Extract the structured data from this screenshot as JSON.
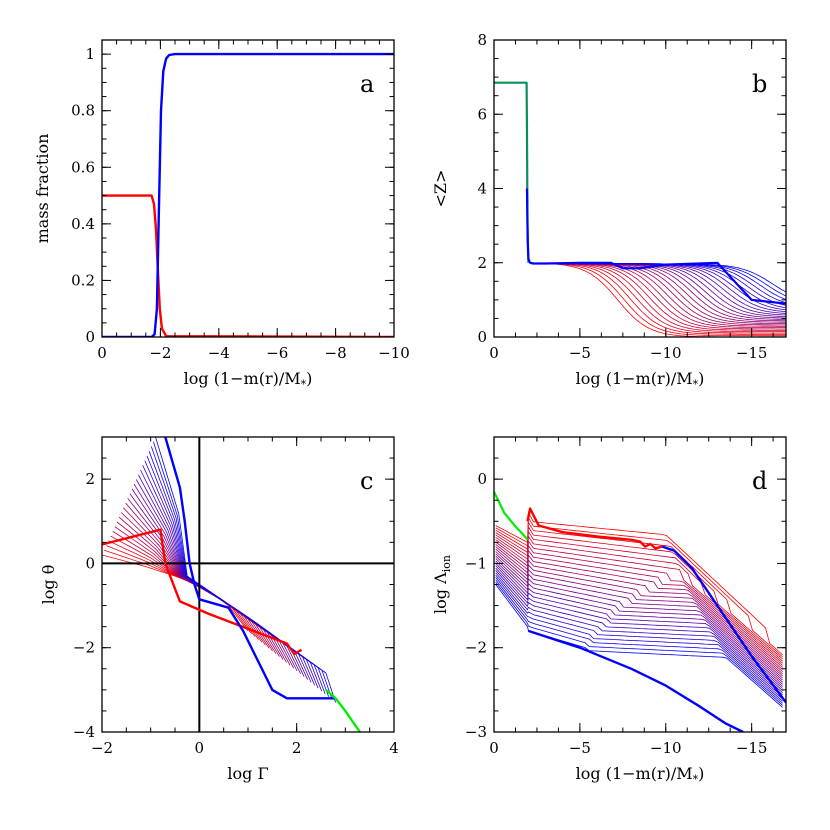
{
  "colors": {
    "red": "#ff0000",
    "blue": "#0000ff",
    "green": "#00ee00",
    "teal": "#0a8f5a",
    "black": "#000000"
  },
  "chart_data": [
    {
      "id": "a",
      "type": "line",
      "panel_label": "a",
      "xlabel": "log (1−m(r)/M",
      "xlabel_sub": "*",
      "xlabel_tail": ")",
      "ylabel": "mass fraction",
      "xlim": [
        0,
        -10
      ],
      "ylim": [
        0,
        1.05
      ],
      "xticks": [
        0,
        -2,
        -4,
        -6,
        -8,
        -10
      ],
      "xtick_labels": [
        "0",
        "−2",
        "−4",
        "−6",
        "−8",
        "−10"
      ],
      "yticks": [
        0,
        0.2,
        0.4,
        0.6,
        0.8,
        1
      ],
      "ytick_labels": [
        "0",
        "0.2",
        "0.4",
        "0.6",
        "0.8",
        "1"
      ],
      "series": [
        {
          "name": "red-dashed",
          "color": "red",
          "dash": true,
          "width": 1.6,
          "x": [
            0,
            -1.7,
            -1.78,
            -1.85,
            -1.92,
            -1.98,
            -2.05,
            -2.2,
            -10
          ],
          "y": [
            0.5,
            0.5,
            0.47,
            0.38,
            0.22,
            0.1,
            0.03,
            0.003,
            0.0
          ]
        },
        {
          "name": "black",
          "color": "black",
          "width": 1.6,
          "x": [
            0,
            -1.7,
            -1.78,
            -1.85,
            -1.92,
            -1.98,
            -2.05,
            -2.2,
            -10
          ],
          "y": [
            0.5,
            0.5,
            0.47,
            0.38,
            0.22,
            0.1,
            0.03,
            0.003,
            0.0
          ]
        },
        {
          "name": "red",
          "color": "red",
          "width": 2.4,
          "x": [
            0,
            -1.7,
            -1.78,
            -1.85,
            -1.92,
            -1.98,
            -2.05,
            -2.2,
            -10
          ],
          "y": [
            0.5,
            0.5,
            0.47,
            0.38,
            0.22,
            0.1,
            0.03,
            0.003,
            0.0
          ]
        },
        {
          "name": "blue",
          "color": "blue",
          "width": 2.4,
          "x": [
            0,
            -1.7,
            -1.8,
            -1.88,
            -1.95,
            -2.02,
            -2.1,
            -2.2,
            -2.3,
            -2.5,
            -10
          ],
          "y": [
            0.0,
            0.0,
            0.01,
            0.1,
            0.45,
            0.8,
            0.94,
            0.985,
            0.997,
            1.0,
            1.0
          ]
        }
      ]
    },
    {
      "id": "b",
      "type": "line",
      "panel_label": "b",
      "xlabel": "log (1−m(r)/M",
      "xlabel_sub": "*",
      "xlabel_tail": ")",
      "ylabel": "<Z>",
      "xlim": [
        0,
        -17
      ],
      "ylim": [
        0,
        8
      ],
      "xticks": [
        0,
        -5,
        -10,
        -15
      ],
      "xtick_labels": [
        "0",
        "−5",
        "−10",
        "−15"
      ],
      "yticks": [
        0,
        2,
        4,
        6,
        8
      ],
      "ytick_labels": [
        "0",
        "2",
        "4",
        "6",
        "8"
      ],
      "family": {
        "name": "ionization-profiles",
        "count": 26,
        "color_start": "red",
        "color_end": "blue",
        "drop_start": -7.2,
        "drop_end": -16.2,
        "floor_start": 0.0,
        "floor_end": 0.9
      },
      "series": [
        {
          "name": "teal",
          "color": "teal",
          "width": 2.2,
          "x": [
            0,
            -1.9,
            -1.92,
            -1.95,
            -2.0
          ],
          "y": [
            6.85,
            6.85,
            5.5,
            3.0,
            2.0
          ]
        },
        {
          "name": "blue-core",
          "color": "blue",
          "width": 2.2,
          "x": [
            -1.92,
            -1.96,
            -2.0,
            -2.1,
            -2.3,
            -3,
            -5,
            -6.8,
            -7.5,
            -8.5,
            -10,
            -13,
            -15,
            -17
          ],
          "y": [
            4.0,
            2.6,
            2.1,
            2.0,
            1.98,
            1.98,
            2.0,
            2.0,
            1.85,
            1.85,
            1.95,
            2.0,
            1.0,
            0.9
          ]
        }
      ]
    },
    {
      "id": "c",
      "type": "line",
      "panel_label": "c",
      "xlabel": "log Γ",
      "ylabel": "log θ",
      "xlim": [
        -2,
        4
      ],
      "ylim": [
        -4,
        3
      ],
      "xticks": [
        -2,
        0,
        2,
        4
      ],
      "xtick_labels": [
        "−2",
        "0",
        "2",
        "4"
      ],
      "yticks": [
        -4,
        -2,
        0,
        2
      ],
      "ytick_labels": [
        "−4",
        "−2",
        "0",
        "2"
      ],
      "family": {
        "name": "theta-gamma-tracks",
        "count": 26,
        "color_start": "red",
        "color_end": "blue"
      },
      "series": [
        {
          "name": "red-thick",
          "color": "red",
          "width": 2.4,
          "x": [
            -2,
            -0.8,
            -0.7,
            -0.4,
            0.2,
            1.0,
            1.8,
            1.95,
            2.1
          ],
          "y": [
            0.45,
            0.8,
            0.0,
            -0.9,
            -1.2,
            -1.55,
            -1.9,
            -2.15,
            -2.05
          ]
        },
        {
          "name": "blue-thick",
          "color": "blue",
          "width": 2.4,
          "x": [
            -0.7,
            -0.4,
            -0.3,
            -0.2,
            -0.1,
            0.0,
            0.6,
            0.9,
            1.2,
            1.5,
            1.8,
            2.0,
            2.8
          ],
          "y": [
            3.0,
            1.8,
            1.0,
            0.0,
            -0.5,
            -0.85,
            -1.05,
            -1.6,
            -2.3,
            -3.0,
            -3.2,
            -3.2,
            -3.2
          ]
        },
        {
          "name": "green",
          "color": "green",
          "width": 2.4,
          "x": [
            2.6,
            2.8,
            3.0,
            3.3
          ],
          "y": [
            -3.0,
            -3.2,
            -3.5,
            -4.0
          ]
        }
      ],
      "reference_lines": [
        {
          "name": "vertical-zero",
          "orientation": "vertical",
          "value": 0
        },
        {
          "name": "horizontal-zero",
          "orientation": "horizontal",
          "value": 0
        }
      ]
    },
    {
      "id": "d",
      "type": "line",
      "panel_label": "d",
      "xlabel": "log (1−m(r)/M",
      "xlabel_sub": "*",
      "xlabel_tail": ")",
      "ylabel": "log Λ",
      "ylabel_sub": "ion",
      "xlim": [
        0,
        -17
      ],
      "ylim": [
        -3,
        0.5
      ],
      "xticks": [
        0,
        -5,
        -10,
        -15
      ],
      "xtick_labels": [
        "0",
        "−5",
        "−10",
        "−15"
      ],
      "yticks": [
        -3,
        -2,
        -1,
        0
      ],
      "ytick_labels": [
        "−3",
        "−2",
        "−1",
        "0"
      ],
      "family": {
        "name": "coulomb-log-profiles",
        "count": 26,
        "color_start": "red",
        "color_end": "blue"
      },
      "series": [
        {
          "name": "green-core",
          "color": "green",
          "width": 2.2,
          "x": [
            0,
            -0.6,
            -1.2,
            -1.8,
            -1.95
          ],
          "y": [
            -0.15,
            -0.4,
            -0.55,
            -0.68,
            -0.72
          ]
        },
        {
          "name": "red-top",
          "color": "red",
          "width": 2.4,
          "x": [
            -1.95,
            -2.1,
            -2.6,
            -4,
            -6,
            -8,
            -8.5,
            -8.8,
            -9.1,
            -9.4,
            -9.8
          ],
          "y": [
            -0.5,
            -0.35,
            -0.55,
            -0.63,
            -0.68,
            -0.72,
            -0.74,
            -0.8,
            -0.77,
            -0.82,
            -0.8
          ]
        },
        {
          "name": "blue-top",
          "color": "blue",
          "width": 2.4,
          "x": [
            -9.8,
            -10.5,
            -11.5,
            -13,
            -15,
            -17
          ],
          "y": [
            -0.8,
            -0.85,
            -1.05,
            -1.5,
            -2.1,
            -2.65
          ]
        },
        {
          "name": "blue-bottom",
          "color": "blue",
          "width": 2.4,
          "x": [
            -2.0,
            -5,
            -8,
            -10,
            -12,
            -13.5,
            -14.5
          ],
          "y": [
            -1.8,
            -2.0,
            -2.25,
            -2.45,
            -2.7,
            -2.9,
            -3.0
          ]
        }
      ]
    }
  ]
}
